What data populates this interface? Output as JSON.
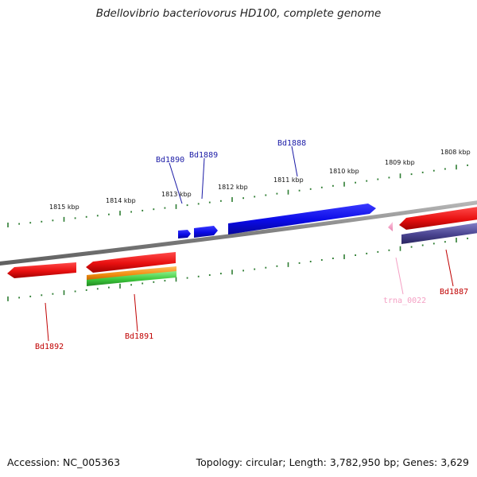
{
  "title": "Bdellovibrio bacteriovorus HD100, complete genome",
  "footer": {
    "accession": "Accession: NC_005363",
    "summary": "Topology: circular; Length: 3,782,950 bp; Genes: 3,629"
  },
  "colors": {
    "backbone": "#808080",
    "tick": "#2e7d32",
    "blue_gene": "#0a0ae6",
    "blue_label": "#1a1aa6",
    "red_gene": "#e81010",
    "red_label": "#c00000",
    "orange_gene": "#f08c10",
    "green_gene": "#3cc83c",
    "purple_gene": "#4a4490",
    "trna": "#f4a0c4"
  },
  "scale_labels": [
    "1815 kbp",
    "1814 kbp",
    "1813 kbp",
    "1812 kbp",
    "1811 kbp",
    "1810 kbp",
    "1809 kbp",
    "1808 kbp"
  ],
  "gene_labels": {
    "bd1890": "Bd1890",
    "bd1889": "Bd1889",
    "bd1888": "Bd1888",
    "bd1887": "Bd1887",
    "trna_0022": "trna_0022",
    "bd1891": "Bd1891",
    "bd1892": "Bd1892"
  }
}
